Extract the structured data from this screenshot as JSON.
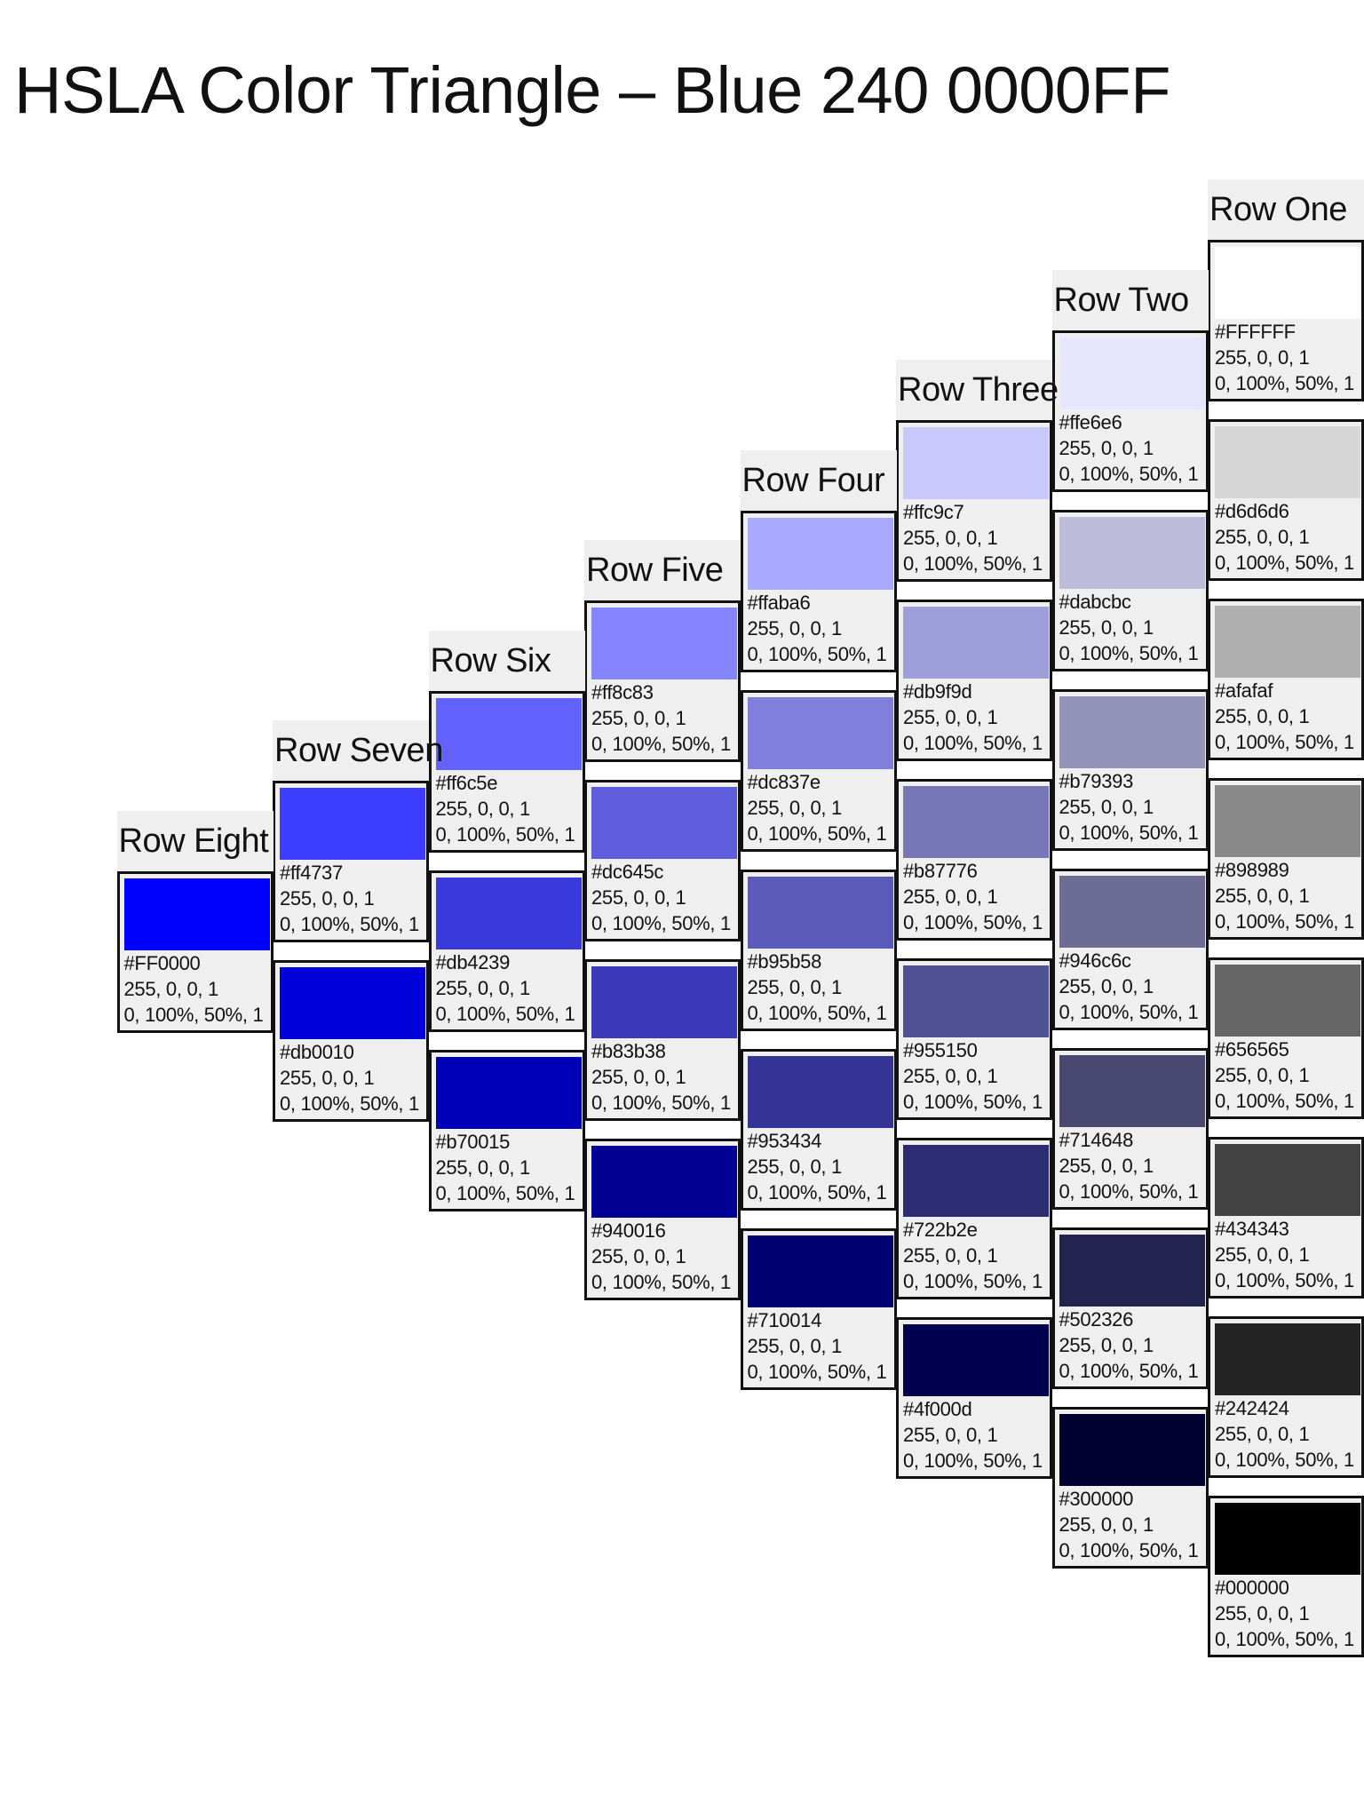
{
  "title": "HSLA Color Triangle – Blue 240 0000FF",
  "rows": [
    {
      "label": "Row One",
      "swatches": [
        {
          "hex": "#FFFFFF",
          "rgb": "255, 0, 0, 1",
          "hsl": "0, 100%, 50%, 1",
          "color": "#ffffff"
        },
        {
          "hex": "#d6d6d6",
          "rgb": "255, 0, 0, 1",
          "hsl": "0, 100%, 50%, 1",
          "color": "#d6d6d6"
        },
        {
          "hex": "#afafaf",
          "rgb": "255, 0, 0, 1",
          "hsl": "0, 100%, 50%, 1",
          "color": "#afafaf"
        },
        {
          "hex": "#898989",
          "rgb": "255, 0, 0, 1",
          "hsl": "0, 100%, 50%, 1",
          "color": "#898989"
        },
        {
          "hex": "#656565",
          "rgb": "255, 0, 0, 1",
          "hsl": "0, 100%, 50%, 1",
          "color": "#656565"
        },
        {
          "hex": "#434343",
          "rgb": "255, 0, 0, 1",
          "hsl": "0, 100%, 50%, 1",
          "color": "#434343"
        },
        {
          "hex": "#242424",
          "rgb": "255, 0, 0, 1",
          "hsl": "0, 100%, 50%, 1",
          "color": "#242424"
        },
        {
          "hex": "#000000",
          "rgb": "255, 0, 0, 1",
          "hsl": "0, 100%, 50%, 1",
          "color": "#000000"
        }
      ]
    },
    {
      "label": "Row Two",
      "swatches": [
        {
          "hex": "#ffe6e6",
          "rgb": "255, 0, 0, 1",
          "hsl": "0, 100%, 50%, 1",
          "color": "#e6e6ff"
        },
        {
          "hex": "#dabcbc",
          "rgb": "255, 0, 0, 1",
          "hsl": "0, 100%, 50%, 1",
          "color": "#bcbcda"
        },
        {
          "hex": "#b79393",
          "rgb": "255, 0, 0, 1",
          "hsl": "0, 100%, 50%, 1",
          "color": "#9393b7"
        },
        {
          "hex": "#946c6c",
          "rgb": "255, 0, 0, 1",
          "hsl": "0, 100%, 50%, 1",
          "color": "#6c6c94"
        },
        {
          "hex": "#714648",
          "rgb": "255, 0, 0, 1",
          "hsl": "0, 100%, 50%, 1",
          "color": "#484871"
        },
        {
          "hex": "#502326",
          "rgb": "255, 0, 0, 1",
          "hsl": "0, 100%, 50%, 1",
          "color": "#232350"
        },
        {
          "hex": "#300000",
          "rgb": "255, 0, 0, 1",
          "hsl": "0, 100%, 50%, 1",
          "color": "#000030"
        }
      ]
    },
    {
      "label": "Row Three",
      "swatches": [
        {
          "hex": "#ffc9c7",
          "rgb": "255, 0, 0, 1",
          "hsl": "0, 100%, 50%, 1",
          "color": "#c8c8ff"
        },
        {
          "hex": "#db9f9d",
          "rgb": "255, 0, 0, 1",
          "hsl": "0, 100%, 50%, 1",
          "color": "#9e9edb"
        },
        {
          "hex": "#b87776",
          "rgb": "255, 0, 0, 1",
          "hsl": "0, 100%, 50%, 1",
          "color": "#7777b8"
        },
        {
          "hex": "#955150",
          "rgb": "255, 0, 0, 1",
          "hsl": "0, 100%, 50%, 1",
          "color": "#505095"
        },
        {
          "hex": "#722b2e",
          "rgb": "255, 0, 0, 1",
          "hsl": "0, 100%, 50%, 1",
          "color": "#2c2c72"
        },
        {
          "hex": "#4f000d",
          "rgb": "255, 0, 0, 1",
          "hsl": "0, 100%, 50%, 1",
          "color": "#00004f"
        }
      ]
    },
    {
      "label": "Row Four",
      "swatches": [
        {
          "hex": "#ffaba6",
          "rgb": "255, 0, 0, 1",
          "hsl": "0, 100%, 50%, 1",
          "color": "#a8a8ff"
        },
        {
          "hex": "#dc837e",
          "rgb": "255, 0, 0, 1",
          "hsl": "0, 100%, 50%, 1",
          "color": "#8080dc"
        },
        {
          "hex": "#b95b58",
          "rgb": "255, 0, 0, 1",
          "hsl": "0, 100%, 50%, 1",
          "color": "#5a5ab9"
        },
        {
          "hex": "#953434",
          "rgb": "255, 0, 0, 1",
          "hsl": "0, 100%, 50%, 1",
          "color": "#343495"
        },
        {
          "hex": "#710014",
          "rgb": "255, 0, 0, 1",
          "hsl": "0, 100%, 50%, 1",
          "color": "#000071"
        }
      ]
    },
    {
      "label": "Row Five",
      "swatches": [
        {
          "hex": "#ff8c83",
          "rgb": "255, 0, 0, 1",
          "hsl": "0, 100%, 50%, 1",
          "color": "#8585ff"
        },
        {
          "hex": "#dc645c",
          "rgb": "255, 0, 0, 1",
          "hsl": "0, 100%, 50%, 1",
          "color": "#5e5edc"
        },
        {
          "hex": "#b83b38",
          "rgb": "255, 0, 0, 1",
          "hsl": "0, 100%, 50%, 1",
          "color": "#3a3ab8"
        },
        {
          "hex": "#940016",
          "rgb": "255, 0, 0, 1",
          "hsl": "0, 100%, 50%, 1",
          "color": "#000094"
        }
      ]
    },
    {
      "label": "Row Six",
      "swatches": [
        {
          "hex": "#ff6c5e",
          "rgb": "255, 0, 0, 1",
          "hsl": "0, 100%, 50%, 1",
          "color": "#6262ff"
        },
        {
          "hex": "#db4239",
          "rgb": "255, 0, 0, 1",
          "hsl": "0, 100%, 50%, 1",
          "color": "#3a3adb"
        },
        {
          "hex": "#b70015",
          "rgb": "255, 0, 0, 1",
          "hsl": "0, 100%, 50%, 1",
          "color": "#0000b7"
        }
      ]
    },
    {
      "label": "Row Seven",
      "swatches": [
        {
          "hex": "#ff4737",
          "rgb": "255, 0, 0, 1",
          "hsl": "0, 100%, 50%, 1",
          "color": "#3c3cff"
        },
        {
          "hex": "#db0010",
          "rgb": "255, 0, 0, 1",
          "hsl": "0, 100%, 50%, 1",
          "color": "#0000db"
        }
      ]
    },
    {
      "label": "Row Eight",
      "swatches": [
        {
          "hex": "#FF0000",
          "rgb": "255, 0, 0, 1",
          "hsl": "0, 100%, 50%, 1",
          "color": "#0000ff"
        }
      ]
    }
  ]
}
